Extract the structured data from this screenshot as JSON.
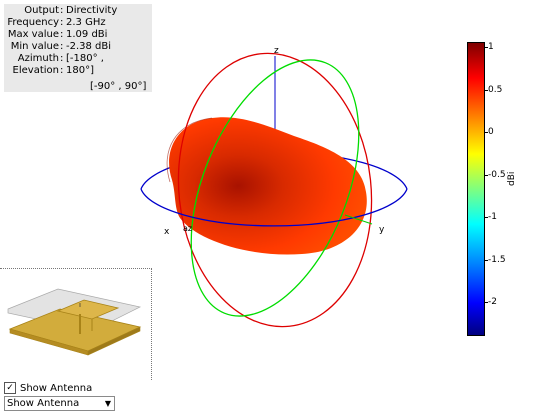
{
  "info": {
    "rows": [
      {
        "label": "Output",
        "value": "Directivity"
      },
      {
        "label": "Frequency",
        "value": "2.3 GHz"
      },
      {
        "label": "Max value",
        "value": "1.09 dBi"
      },
      {
        "label": "Min value",
        "value": "-2.38 dBi"
      },
      {
        "label": "Azimuth",
        "value": "[-180° ,"
      },
      {
        "label": "Elevation",
        "value": "180°]"
      }
    ],
    "extra": "[-90° , 90°]"
  },
  "axes": {
    "x": "x",
    "y": "y",
    "z": "z",
    "az": "az",
    "el": "el"
  },
  "colorbar": {
    "unit": "dBi",
    "ticks": [
      "1",
      "0.5",
      "0",
      "-0.5",
      "-1",
      "-1.5",
      "-2"
    ],
    "min": -2.38,
    "max": 1.09
  },
  "controls": {
    "show_antenna_label": "Show Antenna",
    "show_antenna_checked": true,
    "dropdown_value": "Show Antenna"
  },
  "colors": {
    "azimuth_circle": "#0000cc",
    "elevation_circle_1": "#dd0000",
    "elevation_circle_2": "#00dd00",
    "pattern": "#ee2000"
  }
}
